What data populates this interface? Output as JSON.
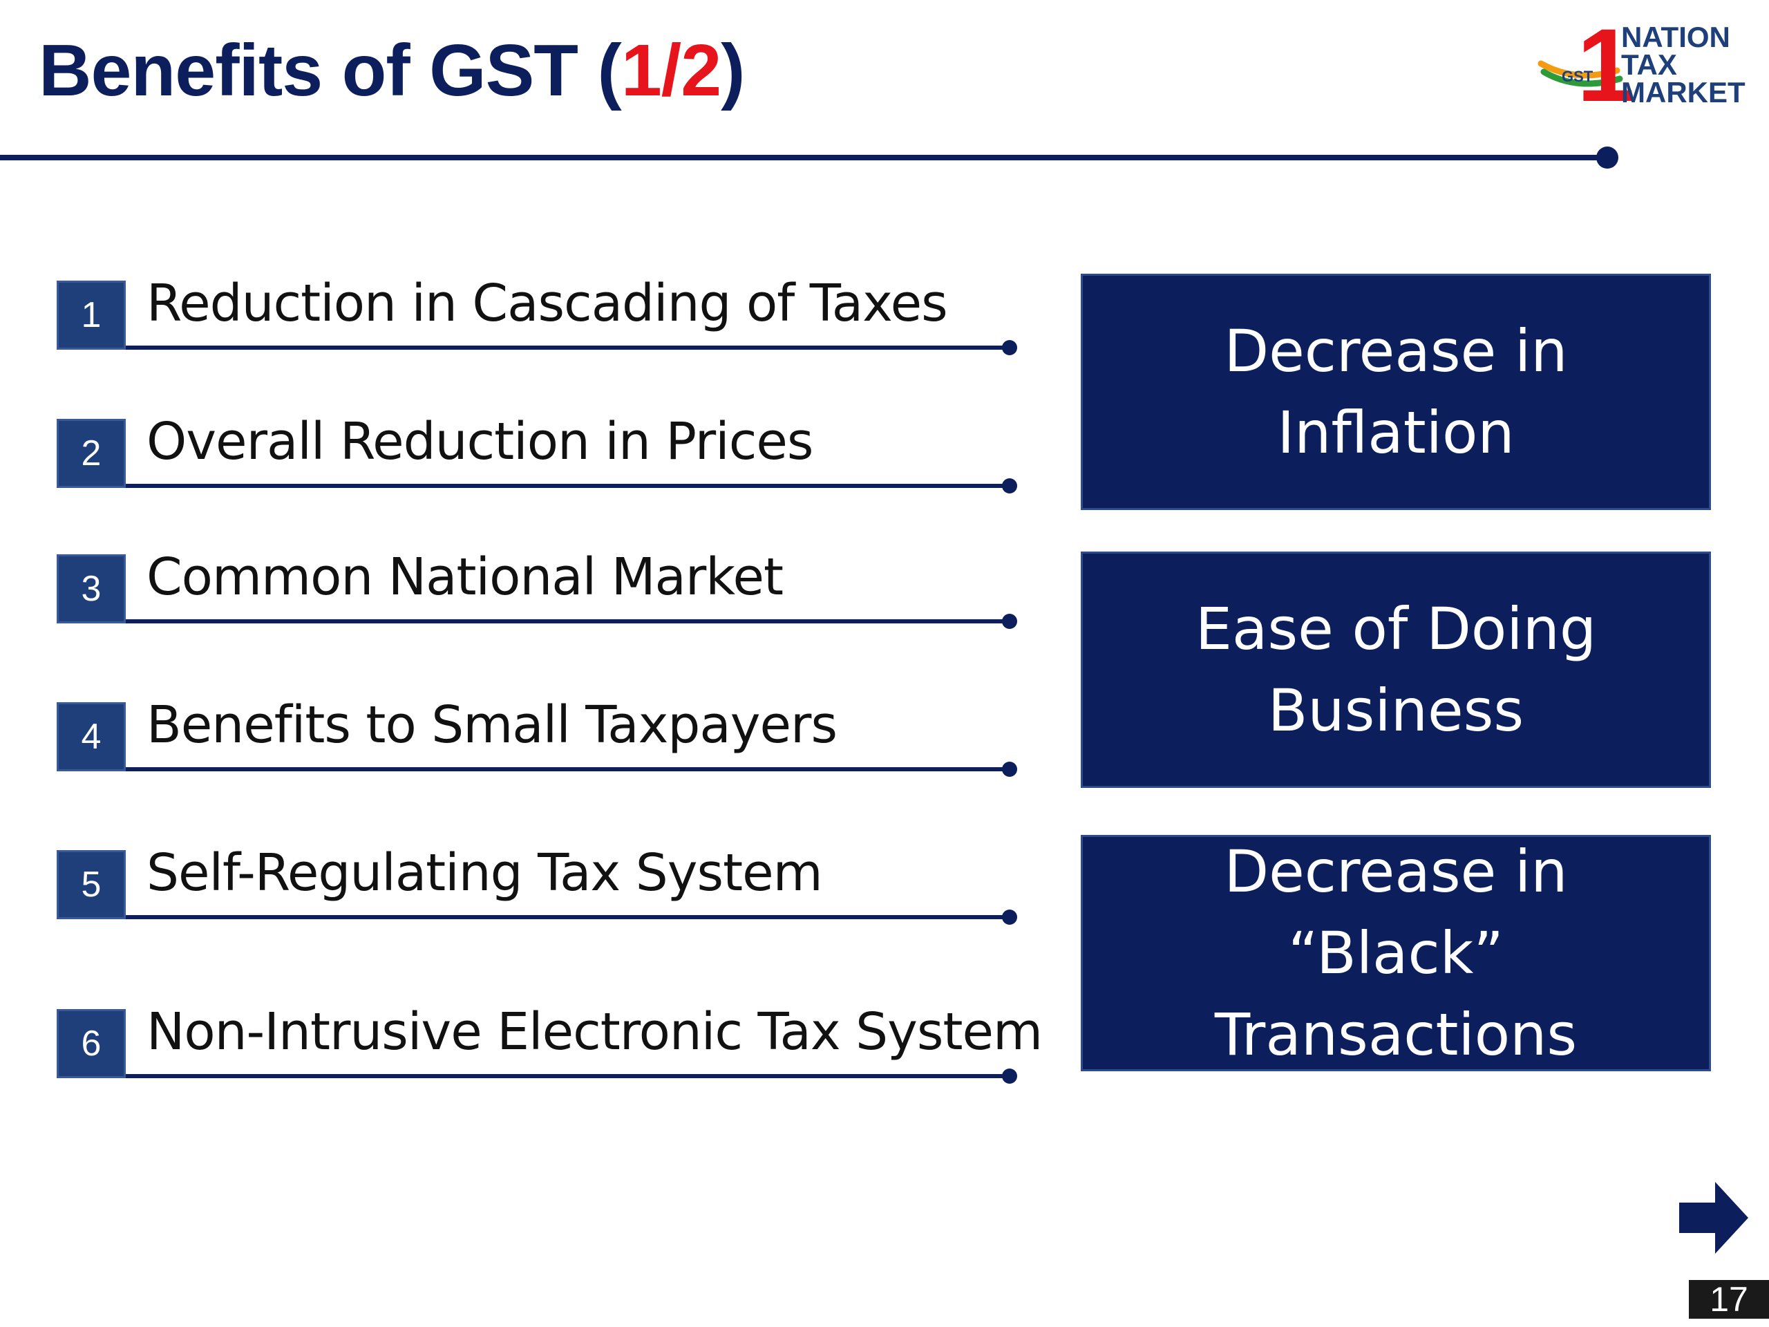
{
  "slide": {
    "title_main": "Benefits of GST (",
    "title_fraction": "1/2",
    "title_end": ")",
    "page_number": "17"
  },
  "logo": {
    "line1": "NATION",
    "line2": "TAX",
    "line3": "MARKET",
    "badge": "GST",
    "numeral": "1"
  },
  "benefits": [
    {
      "number": "1",
      "label": "Reduction in Cascading of Taxes"
    },
    {
      "number": "2",
      "label": "Overall Reduction in Prices"
    },
    {
      "number": "3",
      "label": "Common National Market"
    },
    {
      "number": "4",
      "label": "Benefits to Small Taxpayers"
    },
    {
      "number": "5",
      "label": "Self-Regulating Tax System"
    },
    {
      "number": "6",
      "label": "Non-Intrusive Electronic Tax System"
    }
  ],
  "outcomes": [
    {
      "label": "Decrease in Inflation"
    },
    {
      "label": "Ease of Doing Business"
    },
    {
      "label": "Decrease in “Black” Transactions"
    }
  ],
  "colors": {
    "navy": "#0c1f5c",
    "accent_red": "#e8141b",
    "number_box": "#1f3f7a"
  },
  "icons": {
    "next": "right-arrow-icon"
  }
}
